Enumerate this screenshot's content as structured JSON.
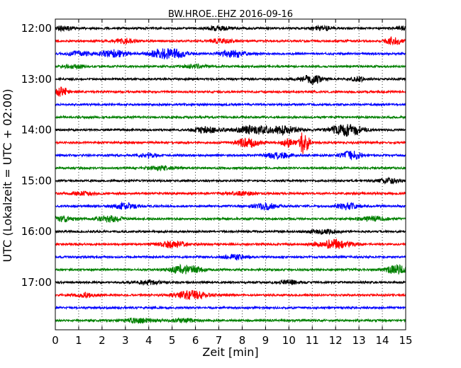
{
  "chart_data": {
    "type": "line",
    "title": "BW.HROE..EHZ 2016-09-16",
    "xlabel": "Zeit  [min]",
    "ylabel": "UTC (Lokalzeit = UTC + 02:00)",
    "xlim": [
      0,
      15
    ],
    "x_ticks": [
      "0",
      "1",
      "2",
      "3",
      "4",
      "5",
      "6",
      "7",
      "8",
      "9",
      "10",
      "11",
      "12",
      "13",
      "14",
      "15"
    ],
    "y_tick_labels": [
      "12:00",
      "13:00",
      "14:00",
      "15:00",
      "16:00",
      "17:00"
    ],
    "grid": "vertical dotted lines at each minute",
    "row_interval_minutes": 15,
    "trace_colors": [
      "#000000",
      "#ff0000",
      "#0000ff",
      "#008000"
    ],
    "traces": [
      {
        "start": "12:00",
        "color": "#000000",
        "bursts": [
          [
            0.3,
            0.3,
            3.0
          ],
          [
            7.0,
            0.35,
            2.8
          ],
          [
            11.4,
            0.3,
            2.8
          ],
          [
            14.8,
            0.2,
            2.8
          ]
        ]
      },
      {
        "start": "12:15",
        "color": "#ff0000",
        "bursts": [
          [
            3.0,
            0.3,
            3.2
          ],
          [
            7.1,
            0.3,
            3.5
          ],
          [
            14.5,
            0.25,
            5.0
          ]
        ]
      },
      {
        "start": "12:30",
        "color": "#0000ff",
        "bursts": [
          [
            1.0,
            0.3,
            3.5
          ],
          [
            2.5,
            0.4,
            5.0
          ],
          [
            4.5,
            0.35,
            6.0
          ],
          [
            5.2,
            0.3,
            5.5
          ],
          [
            7.6,
            0.4,
            5.0
          ]
        ]
      },
      {
        "start": "12:45",
        "color": "#008000",
        "bursts": [
          [
            0.8,
            0.3,
            2.5
          ],
          [
            6.0,
            0.4,
            2.3
          ]
        ]
      },
      {
        "start": "13:00",
        "color": "#000000",
        "bursts": [
          [
            11.0,
            0.35,
            6.0
          ],
          [
            13.0,
            0.25,
            2.8
          ]
        ]
      },
      {
        "start": "13:15",
        "color": "#ff0000",
        "bursts": [
          [
            0.3,
            0.2,
            6.5
          ]
        ]
      },
      {
        "start": "13:30",
        "color": "#0000ff",
        "bursts": []
      },
      {
        "start": "13:45",
        "color": "#008000",
        "bursts": []
      },
      {
        "start": "14:00",
        "color": "#000000",
        "bursts": [
          [
            6.5,
            0.45,
            3.5
          ],
          [
            8.5,
            0.5,
            6.0
          ],
          [
            9.8,
            0.4,
            5.5
          ],
          [
            12.5,
            0.5,
            8.0
          ]
        ]
      },
      {
        "start": "14:15",
        "color": "#ff0000",
        "bursts": [
          [
            8.3,
            0.35,
            6.5
          ],
          [
            10.0,
            0.2,
            6.0
          ],
          [
            10.6,
            0.1,
            14.0
          ],
          [
            10.8,
            0.1,
            10.0
          ]
        ]
      },
      {
        "start": "14:30",
        "color": "#0000ff",
        "bursts": [
          [
            4.0,
            0.3,
            2.8
          ],
          [
            9.5,
            0.4,
            4.0
          ],
          [
            12.7,
            0.3,
            6.0
          ]
        ]
      },
      {
        "start": "14:45",
        "color": "#008000",
        "bursts": [
          [
            4.5,
            0.4,
            2.8
          ]
        ]
      },
      {
        "start": "15:00",
        "color": "#000000",
        "bursts": [
          [
            14.3,
            0.35,
            2.8
          ]
        ]
      },
      {
        "start": "15:15",
        "color": "#ff0000",
        "bursts": [
          [
            1.2,
            0.35,
            2.5
          ],
          [
            8.0,
            0.5,
            2.0
          ]
        ]
      },
      {
        "start": "15:30",
        "color": "#0000ff",
        "bursts": [
          [
            3.0,
            0.35,
            4.0
          ],
          [
            9.0,
            0.35,
            4.5
          ],
          [
            12.5,
            0.3,
            4.5
          ]
        ]
      },
      {
        "start": "15:45",
        "color": "#008000",
        "bursts": [
          [
            0.4,
            0.3,
            3.5
          ],
          [
            2.3,
            0.4,
            4.0
          ],
          [
            13.6,
            0.45,
            2.8
          ]
        ]
      },
      {
        "start": "16:00",
        "color": "#000000",
        "bursts": [
          [
            11.5,
            0.4,
            2.8
          ]
        ]
      },
      {
        "start": "16:15",
        "color": "#ff0000",
        "bursts": [
          [
            5.0,
            0.4,
            4.5
          ],
          [
            12.0,
            0.5,
            6.5
          ]
        ]
      },
      {
        "start": "16:30",
        "color": "#0000ff",
        "bursts": [
          [
            7.7,
            0.3,
            3.5
          ]
        ]
      },
      {
        "start": "16:45",
        "color": "#008000",
        "bursts": [
          [
            5.6,
            0.5,
            6.0
          ],
          [
            14.6,
            0.3,
            6.0
          ]
        ]
      },
      {
        "start": "17:00",
        "color": "#000000",
        "bursts": [
          [
            4.0,
            0.4,
            2.5
          ],
          [
            10.0,
            0.3,
            2.8
          ]
        ]
      },
      {
        "start": "17:15",
        "color": "#ff0000",
        "bursts": [
          [
            1.3,
            0.35,
            2.8
          ],
          [
            5.8,
            0.5,
            5.5
          ]
        ]
      },
      {
        "start": "17:30",
        "color": "#0000ff",
        "bursts": []
      },
      {
        "start": "17:45",
        "color": "#008000",
        "bursts": [
          [
            3.6,
            0.5,
            3.0
          ],
          [
            5.5,
            0.4,
            2.5
          ]
        ]
      }
    ]
  }
}
